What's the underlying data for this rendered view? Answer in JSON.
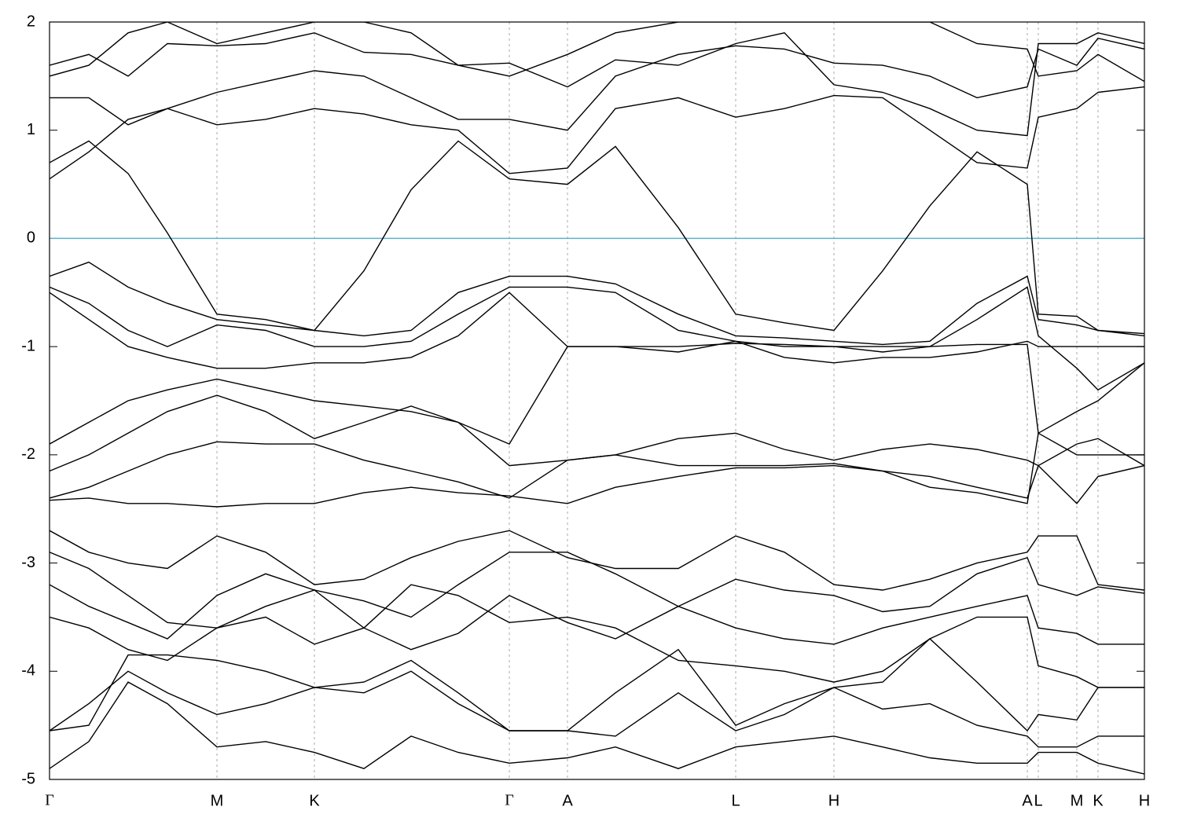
{
  "chart_data": {
    "type": "line",
    "x": [
      0,
      0.05,
      0.1,
      0.15,
      0.213,
      0.275,
      0.337,
      0.4,
      0.46,
      0.52,
      0.585,
      0.659,
      0.72,
      0.8,
      0.873,
      0.935,
      0.998,
      1.06,
      1.12,
      1.18,
      1.244,
      1.258,
      1.307,
      1.334,
      1.393
    ],
    "xlim": [
      0,
      1.393
    ],
    "xticks": [
      {
        "value": 0,
        "label": "Γ"
      },
      {
        "value": 0.213,
        "label": "M"
      },
      {
        "value": 0.337,
        "label": "K"
      },
      {
        "value": 0.585,
        "label": "Γ"
      },
      {
        "value": 0.659,
        "label": "A"
      },
      {
        "value": 0.873,
        "label": "L"
      },
      {
        "value": 0.998,
        "label": "H"
      },
      {
        "value": 1.244,
        "label": "A"
      },
      {
        "value": 1.258,
        "label": "L"
      },
      {
        "value": 1.307,
        "label": "M"
      },
      {
        "value": 1.334,
        "label": "K"
      },
      {
        "value": 1.393,
        "label": "H"
      }
    ],
    "ylim": [
      -5,
      2
    ],
    "yticks": [
      2,
      1,
      0,
      -1,
      -2,
      -3,
      -4,
      -5
    ],
    "grid": true,
    "fermi_level": {
      "value": 0,
      "color": "#5fb0c8"
    },
    "series": [
      {
        "color": "#000000",
        "values": [
          0.7,
          0.9,
          0.6,
          0.05,
          -0.7,
          -0.75,
          -0.85,
          -0.3,
          0.45,
          0.9,
          0.55,
          0.5,
          0.85,
          0.1,
          -0.7,
          -0.78,
          -0.85,
          -0.3,
          0.3,
          0.8,
          0.5,
          -0.7,
          -0.72,
          -0.85,
          -0.9
        ]
      },
      {
        "color": "#000000",
        "values": [
          -0.35,
          -0.22,
          -0.45,
          -0.6,
          -0.75,
          -0.8,
          -0.85,
          -0.9,
          -0.85,
          -0.5,
          -0.35,
          -0.35,
          -0.42,
          -0.7,
          -0.9,
          -0.92,
          -0.95,
          -0.98,
          -0.95,
          -0.6,
          -0.35,
          -0.75,
          -0.8,
          -0.85,
          -0.88
        ]
      },
      {
        "color": "#000000",
        "values": [
          -0.45,
          -0.6,
          -0.85,
          -1.0,
          -0.8,
          -0.85,
          -1.0,
          -1.0,
          -0.95,
          -0.7,
          -0.45,
          -0.45,
          -0.5,
          -0.85,
          -0.95,
          -1.0,
          -1.0,
          -1.05,
          -1.0,
          -0.75,
          -0.45,
          -0.9,
          -1.2,
          -1.4,
          -1.15
        ]
      },
      {
        "color": "#000000",
        "values": [
          -0.5,
          -0.75,
          -1.0,
          -1.1,
          -1.2,
          -1.2,
          -1.15,
          -1.15,
          -1.1,
          -0.9,
          -0.5,
          -1.0,
          -1.0,
          -1.05,
          -0.95,
          -1.1,
          -1.15,
          -1.1,
          -1.1,
          -1.05,
          -0.95,
          -1.0,
          -1.0,
          -1.0,
          -1.0
        ]
      },
      {
        "color": "#000000",
        "values": [
          -1.9,
          -1.7,
          -1.5,
          -1.4,
          -1.3,
          -1.4,
          -1.5,
          -1.55,
          -1.6,
          -1.7,
          -1.9,
          -1.0,
          -1.0,
          -1.0,
          -0.97,
          -0.98,
          -1.0,
          -1.0,
          -1.0,
          -0.98,
          -0.98,
          -1.8,
          -1.6,
          -1.5,
          -1.15
        ]
      },
      {
        "color": "#000000",
        "values": [
          -2.15,
          -2.0,
          -1.8,
          -1.6,
          -1.45,
          -1.6,
          -1.85,
          -1.7,
          -1.55,
          -1.7,
          -2.1,
          -2.05,
          -2.0,
          -1.85,
          -1.8,
          -1.95,
          -2.05,
          -1.95,
          -1.9,
          -1.95,
          -2.05,
          -2.1,
          -1.9,
          -1.85,
          -2.1
        ]
      },
      {
        "color": "#000000",
        "values": [
          -2.4,
          -2.3,
          -2.15,
          -2.0,
          -1.88,
          -1.9,
          -1.9,
          -2.05,
          -2.15,
          -2.25,
          -2.4,
          -2.05,
          -2.0,
          -2.1,
          -2.1,
          -2.1,
          -2.08,
          -2.15,
          -2.2,
          -2.3,
          -2.4,
          -2.1,
          -2.45,
          -2.2,
          -2.1
        ]
      },
      {
        "color": "#000000",
        "values": [
          -2.42,
          -2.4,
          -2.45,
          -2.45,
          -2.48,
          -2.45,
          -2.45,
          -2.35,
          -2.3,
          -2.35,
          -2.38,
          -2.45,
          -2.3,
          -2.2,
          -2.12,
          -2.12,
          -2.1,
          -2.15,
          -2.3,
          -2.35,
          -2.45,
          -1.8,
          -2.0,
          -2.0,
          -2.0
        ]
      },
      {
        "color": "#000000",
        "values": [
          -2.7,
          -2.9,
          -3.0,
          -3.05,
          -2.75,
          -2.9,
          -3.2,
          -3.15,
          -2.95,
          -2.8,
          -2.7,
          -2.95,
          -3.05,
          -3.05,
          -2.75,
          -2.9,
          -3.2,
          -3.25,
          -3.15,
          -3.0,
          -2.9,
          -2.75,
          -2.75,
          -3.2,
          -3.25
        ]
      },
      {
        "color": "#000000",
        "values": [
          -2.9,
          -3.05,
          -3.3,
          -3.55,
          -3.6,
          -3.4,
          -3.25,
          -3.35,
          -3.5,
          -3.2,
          -2.9,
          -2.9,
          -3.1,
          -3.4,
          -3.15,
          -3.25,
          -3.3,
          -3.45,
          -3.4,
          -3.1,
          -2.95,
          -3.2,
          -3.3,
          -3.22,
          -3.28
        ]
      },
      {
        "color": "#000000",
        "values": [
          -3.2,
          -3.4,
          -3.55,
          -3.7,
          -3.3,
          -3.1,
          -3.25,
          -3.6,
          -3.8,
          -3.65,
          -3.3,
          -3.55,
          -3.7,
          -3.4,
          -3.6,
          -3.7,
          -3.75,
          -3.6,
          -3.5,
          -3.4,
          -3.3,
          -3.6,
          -3.65,
          -3.75,
          -3.75
        ]
      },
      {
        "color": "#000000",
        "values": [
          -3.5,
          -3.6,
          -3.8,
          -3.9,
          -3.6,
          -3.5,
          -3.75,
          -3.6,
          -3.2,
          -3.3,
          -3.55,
          -3.5,
          -3.6,
          -3.9,
          -3.95,
          -4.0,
          -4.1,
          -4.0,
          -3.7,
          -3.5,
          -3.5,
          -3.95,
          -4.05,
          -4.15,
          -4.15
        ]
      },
      {
        "color": "#000000",
        "values": [
          -4.55,
          -4.5,
          -3.85,
          -3.85,
          -3.9,
          -4.0,
          -4.15,
          -4.1,
          -3.9,
          -4.2,
          -4.55,
          -4.55,
          -4.2,
          -3.8,
          -4.5,
          -4.3,
          -4.15,
          -4.1,
          -3.7,
          -4.1,
          -4.55,
          -4.4,
          -4.45,
          -4.15,
          -4.15
        ]
      },
      {
        "color": "#000000",
        "values": [
          -4.55,
          -4.3,
          -4.0,
          -4.2,
          -4.4,
          -4.3,
          -4.15,
          -4.2,
          -4.0,
          -4.3,
          -4.55,
          -4.55,
          -4.6,
          -4.2,
          -4.55,
          -4.4,
          -4.15,
          -4.35,
          -4.3,
          -4.5,
          -4.6,
          -4.7,
          -4.7,
          -4.6,
          -4.6
        ]
      },
      {
        "color": "#000000",
        "values": [
          -4.9,
          -4.65,
          -4.1,
          -4.3,
          -4.7,
          -4.65,
          -4.75,
          -4.9,
          -4.6,
          -4.75,
          -4.85,
          -4.8,
          -4.7,
          -4.9,
          -4.7,
          -4.65,
          -4.6,
          -4.7,
          -4.8,
          -4.85,
          -4.85,
          -4.75,
          -4.75,
          -4.85,
          -4.95
        ]
      },
      {
        "color": "#000000",
        "values": [
          0.55,
          0.8,
          1.1,
          1.2,
          1.05,
          1.1,
          1.2,
          1.15,
          1.05,
          1.0,
          0.6,
          0.65,
          1.2,
          1.3,
          1.12,
          1.2,
          1.32,
          1.3,
          1.0,
          0.7,
          0.65,
          1.12,
          1.2,
          1.35,
          1.4
        ]
      },
      {
        "color": "#000000",
        "values": [
          1.3,
          1.3,
          1.05,
          1.2,
          1.35,
          1.45,
          1.55,
          1.5,
          1.3,
          1.1,
          1.1,
          1.0,
          1.5,
          1.7,
          1.78,
          1.75,
          1.62,
          1.6,
          1.5,
          1.3,
          1.4,
          1.75,
          1.6,
          1.85,
          1.75
        ]
      },
      {
        "color": "#000000",
        "values": [
          1.6,
          1.7,
          1.5,
          1.8,
          1.78,
          1.8,
          1.9,
          1.72,
          1.7,
          1.6,
          1.62,
          1.4,
          1.65,
          1.6,
          1.8,
          1.9,
          1.42,
          1.35,
          1.2,
          1.0,
          0.95,
          1.8,
          1.8,
          1.9,
          1.8
        ]
      },
      {
        "color": "#000000",
        "values": [
          1.5,
          1.6,
          1.9,
          2.0,
          1.8,
          1.9,
          2.0,
          2.0,
          1.9,
          1.6,
          1.5,
          1.7,
          1.9,
          2.0,
          2.0,
          2.0,
          2.0,
          2.0,
          2.0,
          1.8,
          1.75,
          1.5,
          1.55,
          1.7,
          1.45
        ]
      }
    ]
  }
}
